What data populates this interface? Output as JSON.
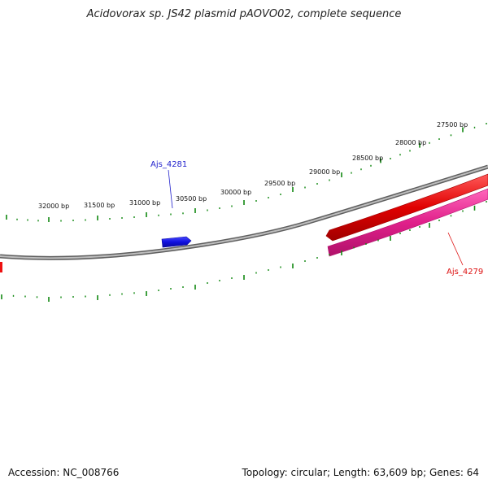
{
  "title": "Acidovorax sp. JS42 plasmid pAOVO02, complete sequence",
  "footer": {
    "accession": "Accession: NC_008766",
    "summary": "Topology: circular; Length: 63,609 bp; Genes: 64"
  },
  "map": {
    "ticks": [
      {
        "bp": 27500,
        "label": "27500 bp"
      },
      {
        "bp": 28000,
        "label": "28000 bp"
      },
      {
        "bp": 28500,
        "label": "28500 bp"
      },
      {
        "bp": 29000,
        "label": "29000 bp"
      },
      {
        "bp": 29500,
        "label": "29500 bp"
      },
      {
        "bp": 30000,
        "label": "30000 bp"
      },
      {
        "bp": 30500,
        "label": "30500 bp"
      },
      {
        "bp": 31000,
        "label": "31000 bp"
      },
      {
        "bp": 31500,
        "label": "31500 bp"
      },
      {
        "bp": 32000,
        "label": "32000 bp"
      }
    ],
    "genes": [
      {
        "name": "Ajs_4281",
        "label": "Ajs_4281",
        "color": "#1f1fdd",
        "labeled": true
      },
      {
        "name": "Ajs_4279",
        "label": "Ajs_4279",
        "color": "#dd2277",
        "labeled": true
      },
      {
        "name": "red-feature",
        "label": "",
        "color": "#ee1111",
        "labeled": false
      }
    ],
    "colors": {
      "backbone": "#8a8a8a",
      "tick": "#118811",
      "forward_label": "#1f1fcc",
      "reverse_label": "#dd1111"
    }
  }
}
